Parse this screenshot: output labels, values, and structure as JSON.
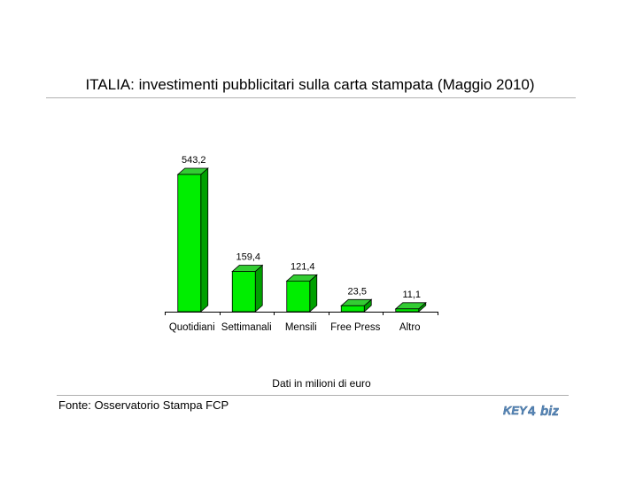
{
  "chart_data": {
    "type": "bar",
    "title": "ITALIA: investimenti pubblicitari sulla carta stampata (Maggio 2010)",
    "categories": [
      "Quotidiani",
      "Settimanali",
      "Mensili",
      "Free Press",
      "Altro"
    ],
    "values": [
      543.2,
      159.4,
      121.4,
      23.5,
      11.1
    ],
    "value_labels": [
      "543,2",
      "159,4",
      "121,4",
      "23,5",
      "11,1"
    ],
    "xlabel": "",
    "ylabel": "",
    "ylim": [
      0,
      543.2
    ],
    "grid": false,
    "legend": "none",
    "bar_color": "#00ee00",
    "bar_side_color": "#00a000",
    "bar_top_color": "#33cc33"
  },
  "note": "Dati in milioni di euro",
  "source": "Fonte: Osservatorio Stampa FCP",
  "logo": {
    "text_left": "KEY4",
    "text_right": "biz",
    "color": "#5a88b8"
  }
}
